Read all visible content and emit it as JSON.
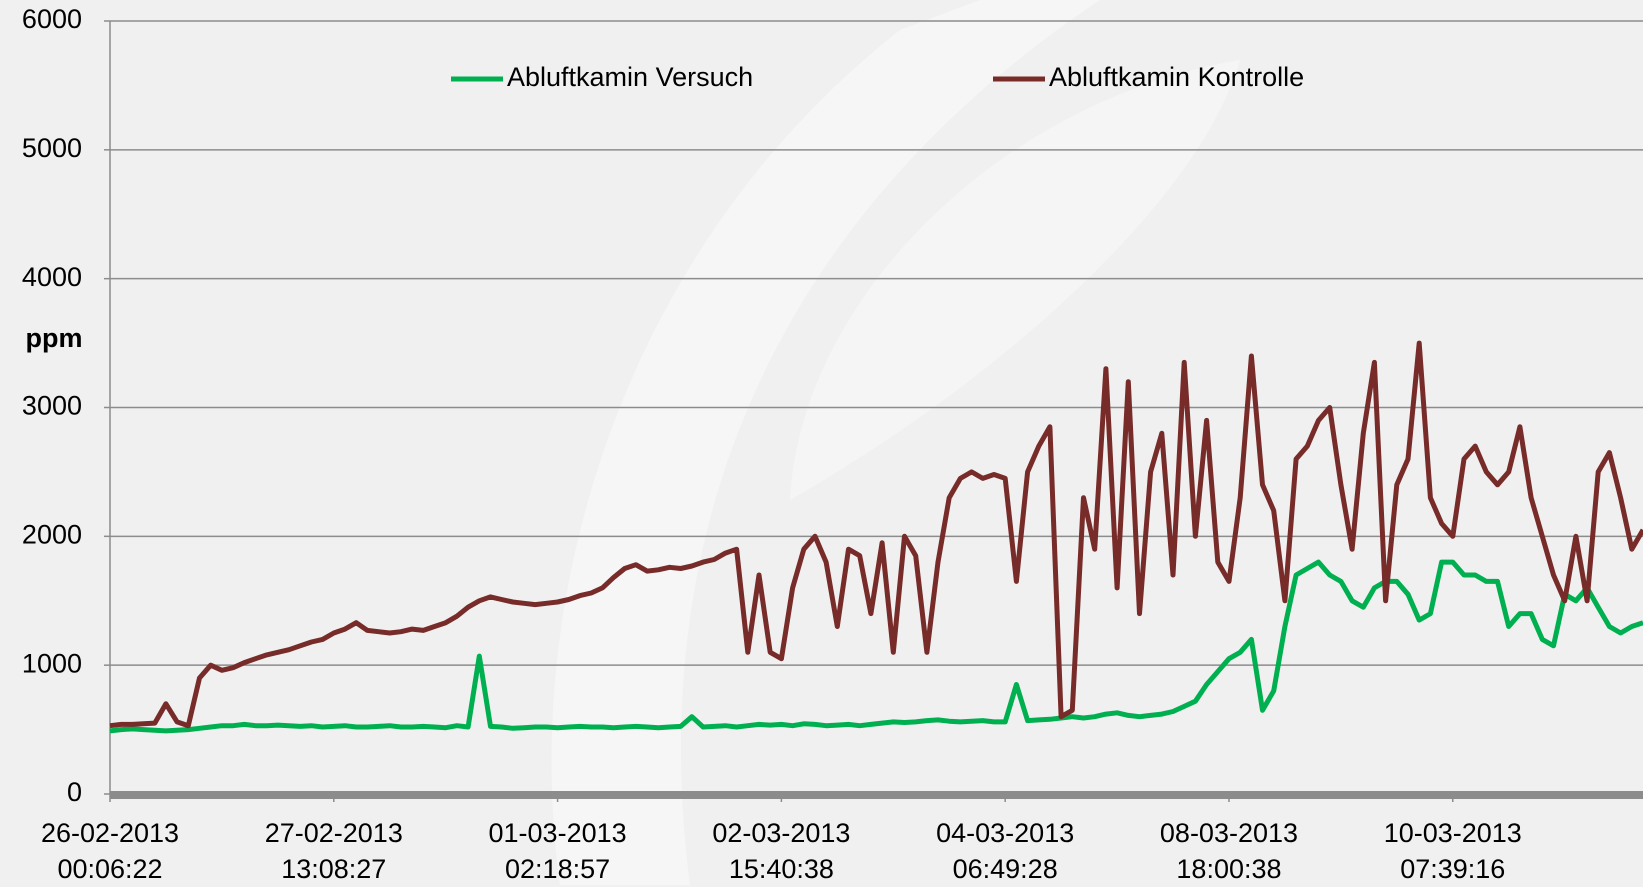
{
  "chart_data": {
    "type": "line",
    "y_label": "ppm",
    "legend": "top",
    "grid": true,
    "ylim": [
      0,
      6000
    ],
    "yticks": [
      0,
      1000,
      2000,
      3000,
      4000,
      5000,
      6000
    ],
    "categories": [
      "26-02-2013\n00:06:22",
      null,
      null,
      null,
      null,
      null,
      null,
      null,
      null,
      null,
      null,
      null,
      null,
      null,
      null,
      null,
      null,
      null,
      null,
      null,
      "27-02-2013\n13:08:27",
      null,
      null,
      null,
      null,
      null,
      null,
      null,
      null,
      null,
      null,
      null,
      null,
      null,
      null,
      null,
      null,
      null,
      null,
      null,
      "01-03-2013\n02:18:57",
      null,
      null,
      null,
      null,
      null,
      null,
      null,
      null,
      null,
      null,
      null,
      null,
      null,
      null,
      null,
      null,
      null,
      null,
      null,
      "02-03-2013\n15:40:38",
      null,
      null,
      null,
      null,
      null,
      null,
      null,
      null,
      null,
      null,
      null,
      null,
      null,
      null,
      null,
      null,
      null,
      null,
      null,
      "04-03-2013\n06:49:28",
      null,
      null,
      null,
      null,
      null,
      null,
      null,
      null,
      null,
      null,
      null,
      null,
      null,
      null,
      null,
      null,
      null,
      null,
      null,
      "08-03-2013\n18:00:38",
      null,
      null,
      null,
      null,
      null,
      null,
      null,
      null,
      null,
      null,
      null,
      null,
      null,
      null,
      null,
      null,
      null,
      null,
      null,
      "10-03-2013\n07:39:16",
      null,
      null,
      null,
      null,
      null,
      null,
      null,
      null,
      null,
      null,
      null,
      null,
      null,
      null,
      null,
      null,
      null
    ],
    "series": [
      {
        "name": "Abluftkamin Versuch",
        "color": "#00b050",
        "values": [
          490,
          500,
          505,
          500,
          495,
          490,
          495,
          500,
          510,
          520,
          530,
          530,
          540,
          530,
          530,
          535,
          530,
          525,
          530,
          520,
          525,
          530,
          520,
          520,
          525,
          530,
          520,
          520,
          525,
          520,
          515,
          530,
          520,
          1070,
          525,
          520,
          510,
          515,
          520,
          520,
          515,
          520,
          525,
          520,
          520,
          515,
          520,
          525,
          520,
          515,
          520,
          525,
          600,
          520,
          525,
          530,
          520,
          530,
          540,
          535,
          540,
          530,
          545,
          540,
          530,
          535,
          540,
          530,
          540,
          550,
          560,
          555,
          560,
          570,
          575,
          565,
          560,
          565,
          570,
          560,
          560,
          850,
          570,
          575,
          580,
          590,
          600,
          590,
          600,
          620,
          630,
          610,
          600,
          610,
          620,
          640,
          680,
          720,
          850,
          950,
          1050,
          1100,
          1200,
          650,
          800,
          1300,
          1700,
          1750,
          1800,
          1700,
          1650,
          1500,
          1450,
          1600,
          1650,
          1650,
          1550,
          1350,
          1400,
          1800,
          1800,
          1700,
          1700,
          1650,
          1650,
          1300,
          1400,
          1400,
          1200,
          1150,
          1550,
          1500,
          1600,
          1450,
          1300,
          1250,
          1300,
          1330
        ]
      },
      {
        "name": "Abluftkamin Kontrolle",
        "color": "#772c2a",
        "values": [
          530,
          540,
          540,
          545,
          550,
          700,
          560,
          530,
          900,
          1000,
          960,
          980,
          1020,
          1050,
          1080,
          1100,
          1120,
          1150,
          1180,
          1200,
          1250,
          1280,
          1330,
          1270,
          1260,
          1250,
          1260,
          1280,
          1270,
          1300,
          1330,
          1380,
          1450,
          1500,
          1530,
          1510,
          1490,
          1480,
          1470,
          1480,
          1490,
          1510,
          1540,
          1560,
          1600,
          1680,
          1750,
          1780,
          1730,
          1740,
          1760,
          1750,
          1770,
          1800,
          1820,
          1870,
          1900,
          1100,
          1700,
          1100,
          1050,
          1600,
          1900,
          2000,
          1800,
          1300,
          1900,
          1850,
          1400,
          1950,
          1100,
          2000,
          1850,
          1100,
          1800,
          2300,
          2450,
          2500,
          2450,
          2480,
          2450,
          1650,
          2500,
          2700,
          2850,
          600,
          650,
          2300,
          1900,
          3300,
          1600,
          3200,
          1400,
          2500,
          2800,
          1700,
          3350,
          2000,
          2900,
          1800,
          1650,
          2300,
          3400,
          2400,
          2200,
          1500,
          2600,
          2700,
          2900,
          3000,
          2400,
          1900,
          2800,
          3350,
          1500,
          2400,
          2600,
          3500,
          2300,
          2100,
          2000,
          2600,
          2700,
          2500,
          2400,
          2500,
          2850,
          2300,
          2000,
          1700,
          1500,
          2000,
          1500,
          2500,
          2650,
          2300,
          1900,
          2050
        ]
      }
    ]
  }
}
